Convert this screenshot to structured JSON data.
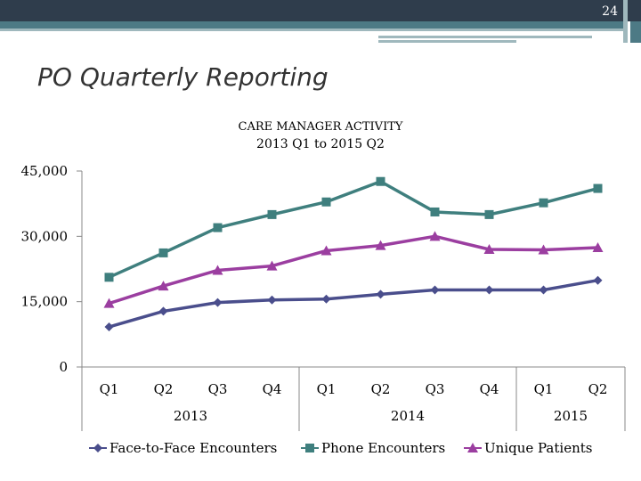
{
  "slide": {
    "page_number": "24",
    "title": "PO Quarterly Reporting"
  },
  "chart_data": {
    "type": "line",
    "title_line1": "CARE MANAGER ACTIVITY",
    "title_line2": "2013 Q1 to 2015 Q2",
    "categories": [
      "Q1",
      "Q2",
      "Q3",
      "Q4",
      "Q1",
      "Q2",
      "Q3",
      "Q4",
      "Q1",
      "Q2"
    ],
    "year_groups": [
      {
        "label": "2013",
        "start": 0,
        "end": 3
      },
      {
        "label": "2014",
        "start": 4,
        "end": 7
      },
      {
        "label": "2015",
        "start": 8,
        "end": 9
      }
    ],
    "ylim": [
      0,
      45000
    ],
    "yticks": [
      0,
      15000,
      30000,
      45000
    ],
    "ytick_labels": [
      "0",
      "15,000",
      "30,000",
      "45,000"
    ],
    "series": [
      {
        "name": "Face-to-Face Encounters",
        "color": "#4a4e8c",
        "marker": "diamond",
        "values": [
          9200,
          12800,
          14800,
          15400,
          15600,
          16700,
          17700,
          17700,
          17700,
          19900
        ]
      },
      {
        "name": "Phone Encounters",
        "color": "#3f7f7e",
        "marker": "square",
        "values": [
          20600,
          26200,
          32000,
          35000,
          37900,
          42600,
          35600,
          35000,
          37700,
          41000
        ]
      },
      {
        "name": "Unique Patients",
        "color": "#9b3ea0",
        "marker": "triangle",
        "values": [
          14600,
          18600,
          22200,
          23200,
          26700,
          27900,
          30000,
          27000,
          26900,
          27400
        ]
      }
    ],
    "legend_position": "bottom"
  }
}
